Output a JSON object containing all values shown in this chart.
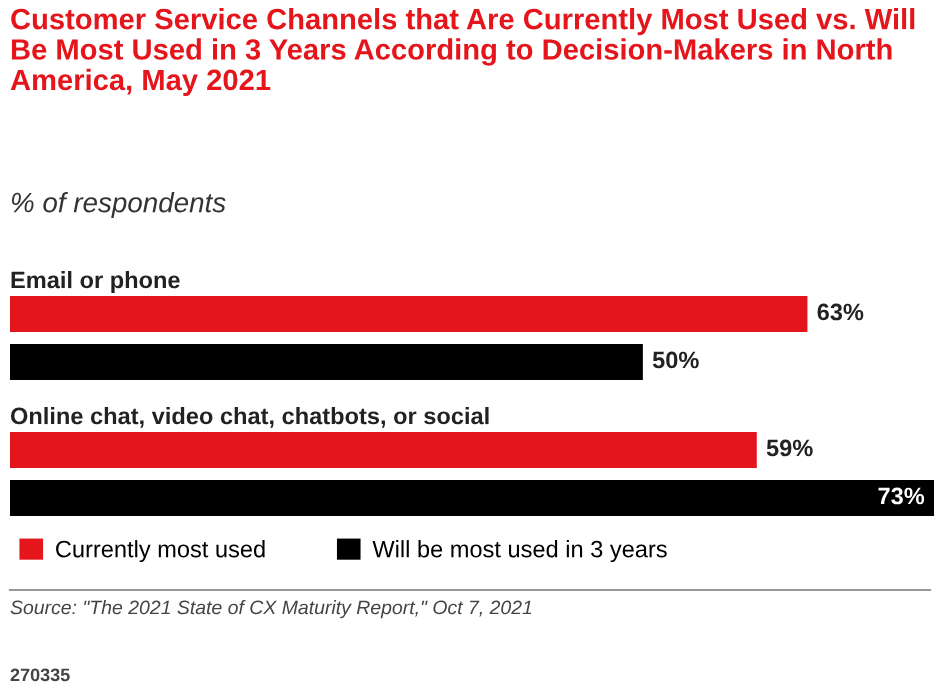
{
  "chart_data": {
    "type": "bar",
    "orientation": "horizontal",
    "title": "Customer Service Channels that Are Currently Most Used vs. Will Be Most Used in 3 Years According to Decision-Makers in North America, May 2021",
    "subtitle": "% of respondents",
    "categories": [
      "Email or phone",
      "Online chat, video chat, chatbots, or social"
    ],
    "series": [
      {
        "name": "Currently most used",
        "color": "#e4151b",
        "values": [
          63,
          59
        ],
        "value_labels": [
          "63%",
          "59%"
        ]
      },
      {
        "name": "Will be most used in 3 years",
        "color": "#000000",
        "values": [
          50,
          73
        ],
        "value_labels": [
          "50%",
          "73%"
        ]
      }
    ],
    "legend": "bottom",
    "annotations": [
      "Source: \"The 2021 State of CX Maturity Report,\" Oct 7, 2021",
      "270335"
    ]
  }
}
